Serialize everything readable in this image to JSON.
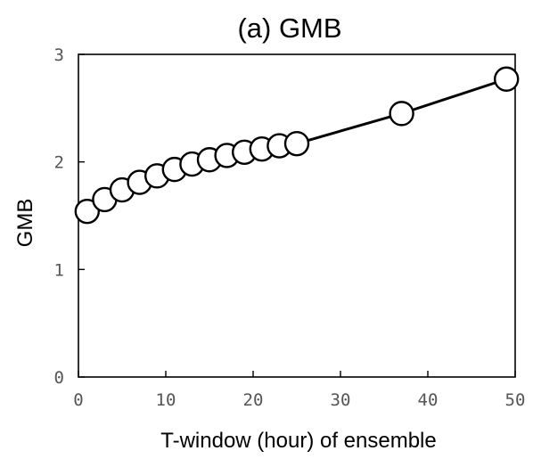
{
  "chart_data": {
    "type": "scatter",
    "title": "(a) GMB",
    "xlabel": "T-window (hour) of ensemble",
    "ylabel": "GMB",
    "xlim": [
      0,
      50
    ],
    "ylim": [
      0,
      3
    ],
    "x_ticks": [
      "0",
      "10",
      "20",
      "30",
      "40",
      "50"
    ],
    "y_ticks": [
      "0",
      "1",
      "2",
      "3"
    ],
    "x_tick_values": [
      0,
      10,
      20,
      30,
      40,
      50
    ],
    "y_tick_values": [
      0,
      1,
      2,
      3
    ],
    "grid": false,
    "markers": "open circles connected by line",
    "series": [
      {
        "x": [
          1,
          3,
          5,
          7,
          9,
          11,
          13,
          15,
          17,
          19,
          21,
          23,
          25,
          37,
          49
        ],
        "y": [
          1.54,
          1.65,
          1.74,
          1.81,
          1.87,
          1.93,
          1.98,
          2.02,
          2.06,
          2.09,
          2.12,
          2.15,
          2.17,
          2.45,
          2.77
        ]
      }
    ],
    "colors": {
      "line": "#000000",
      "marker_fill": "#ffffff",
      "marker_stroke": "#000000"
    }
  }
}
